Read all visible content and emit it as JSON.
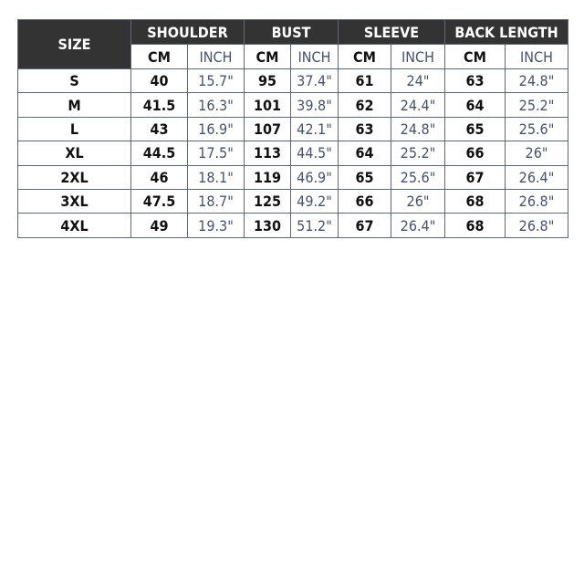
{
  "header": {
    "size": "SIZE",
    "groups": [
      "SHOULDER",
      "BUST",
      "SLEEVE",
      "BACK LENGTH"
    ],
    "cm": "CM",
    "inch": "INCH"
  },
  "rows": [
    {
      "size": "S",
      "v": [
        "40",
        "15.7\"",
        "95",
        "37.4\"",
        "61",
        "24\"",
        "63",
        "24.8\""
      ]
    },
    {
      "size": "M",
      "v": [
        "41.5",
        "16.3\"",
        "101",
        "39.8\"",
        "62",
        "24.4\"",
        "64",
        "25.2\""
      ]
    },
    {
      "size": "L",
      "v": [
        "43",
        "16.9\"",
        "107",
        "42.1\"",
        "63",
        "24.8\"",
        "65",
        "25.6\""
      ]
    },
    {
      "size": "XL",
      "v": [
        "44.5",
        "17.5\"",
        "113",
        "44.5\"",
        "64",
        "25.2\"",
        "66",
        "26\""
      ]
    },
    {
      "size": "2XL",
      "v": [
        "46",
        "18.1\"",
        "119",
        "46.9\"",
        "65",
        "25.6\"",
        "67",
        "26.4\""
      ]
    },
    {
      "size": "3XL",
      "v": [
        "47.5",
        "18.7\"",
        "125",
        "49.2\"",
        "66",
        "26\"",
        "68",
        "26.8\""
      ]
    },
    {
      "size": "4XL",
      "v": [
        "49",
        "19.3\"",
        "130",
        "51.2\"",
        "67",
        "26.4\"",
        "68",
        "26.8\""
      ]
    }
  ],
  "colors": {
    "header_bg": "#333333",
    "inch_text": "#46536a",
    "border": "#5d6878"
  }
}
